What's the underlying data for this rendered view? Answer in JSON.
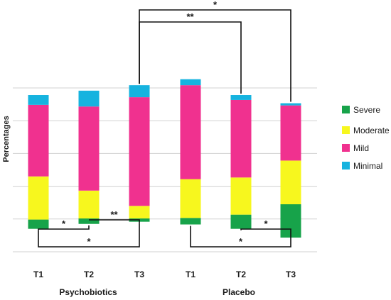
{
  "chart_data": {
    "type": "bar",
    "stacked": true,
    "ylabel": "Percentages",
    "grid": true,
    "legend_position": "right",
    "categories": [
      "T1",
      "T2",
      "T3",
      "T1",
      "T2",
      "T3"
    ],
    "groups": [
      {
        "name": "Psychobiotics",
        "categories": [
          "T1",
          "T2",
          "T3"
        ]
      },
      {
        "name": "Placebo",
        "categories": [
          "T1",
          "T2",
          "T3"
        ]
      }
    ],
    "series": [
      {
        "name": "Severe",
        "color": "#17a34a",
        "values": [
          0.85,
          0.5,
          0.3,
          0.6,
          1.3,
          3.05
        ]
      },
      {
        "name": "Moderate",
        "color": "#f7f71e",
        "values": [
          3.95,
          2.55,
          1.15,
          3.55,
          3.4,
          4.0
        ]
      },
      {
        "name": "Mild",
        "color": "#f0318f",
        "values": [
          6.55,
          7.7,
          9.95,
          8.6,
          7.1,
          5.05
        ]
      },
      {
        "name": "Minimal",
        "color": "#16b3df",
        "values": [
          0.9,
          1.45,
          1.1,
          0.55,
          0.45,
          0.2
        ]
      }
    ],
    "y_baseline": [
      2.1,
      2.55,
      2.75,
      2.5,
      2.1,
      1.3
    ],
    "ylim": [
      0,
      15
    ],
    "comparisons": [
      {
        "from": 0,
        "to": 1,
        "label": "*",
        "side": "below"
      },
      {
        "from": 1,
        "to": 2,
        "label": "**",
        "side": "below"
      },
      {
        "from": 0,
        "to": 2,
        "label": "*",
        "side": "below"
      },
      {
        "from": 4,
        "to": 5,
        "label": "*",
        "side": "below"
      },
      {
        "from": 3,
        "to": 5,
        "label": "*",
        "side": "below"
      },
      {
        "from": 2,
        "to": 4,
        "label": "**",
        "side": "above"
      },
      {
        "from": 2,
        "to": 5,
        "label": "*",
        "side": "above"
      }
    ]
  },
  "legend": {
    "items": [
      {
        "label": "Severe",
        "color": "#17a34a"
      },
      {
        "label": "Moderate",
        "color": "#f7f71e"
      },
      {
        "label": "Mild",
        "color": "#f0318f"
      },
      {
        "label": "Minimal",
        "color": "#16b3df"
      }
    ]
  },
  "axis": {
    "ylabel": "Percentages",
    "group_labels": [
      "Psychobiotics",
      "Placebo"
    ]
  }
}
